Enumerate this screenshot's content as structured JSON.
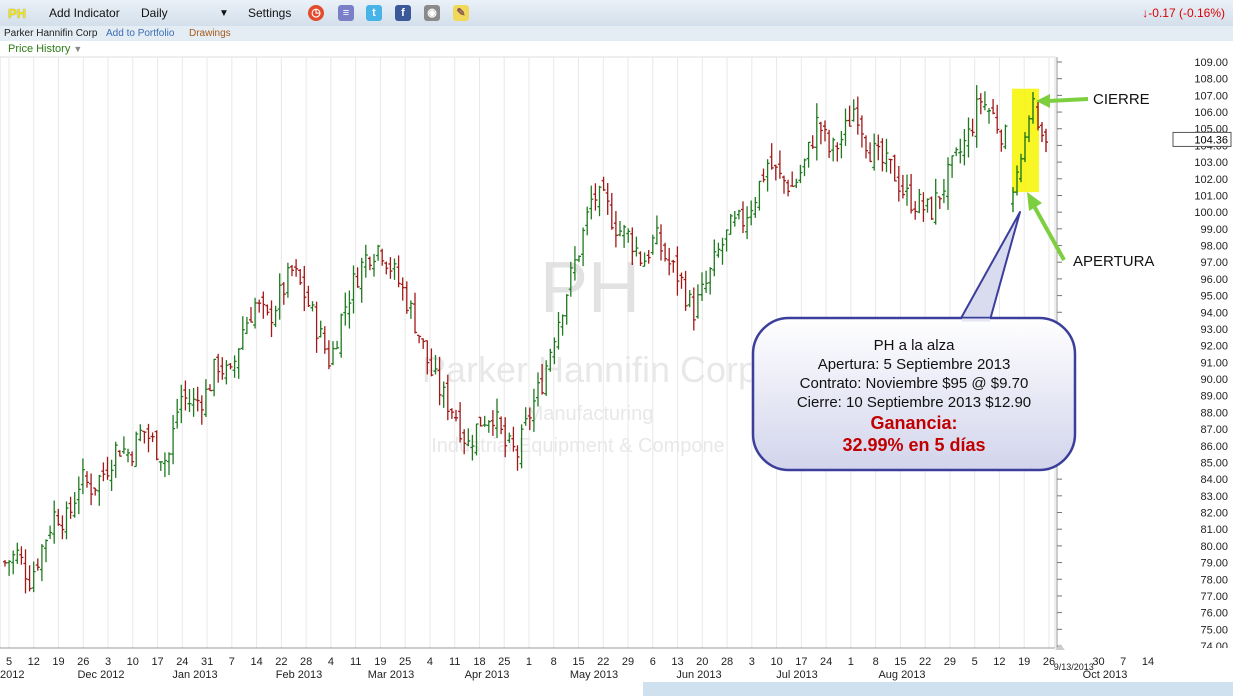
{
  "toolbar": {
    "ticker": "PH",
    "add_indicator": "Add Indicator",
    "period": "Daily",
    "settings": "Settings",
    "change": "-0.17 (-0.16%)",
    "icons": [
      "alarm-clock-icon",
      "database-icon",
      "twitter-icon",
      "facebook-icon",
      "camera-icon",
      "notes-icon"
    ]
  },
  "subbar": {
    "company": "Parker Hannifin Corp",
    "add_portfolio": "Add to Portfolio",
    "drawings": "Drawings"
  },
  "price_history_label": "Price History",
  "watermark": {
    "symbol": "PH",
    "company": "Parker Hannifin Corp",
    "sector": "Manufacturing",
    "industry": "Industrial Equipment & Compone"
  },
  "callout": {
    "line1": "PH a la alza",
    "line2": "Apertura: 5 Septiembre 2013",
    "line3": "Contrato:  Noviembre $95 @ $9.70",
    "line4": "Cierre: 10 Septiembre 2013 $12.90",
    "gain_label": "Ganancia:",
    "gain_value": "32.99% en 5 días"
  },
  "annotations": {
    "cierre": "CIERRE",
    "apertura": "APERTURA"
  },
  "colors": {
    "up": "#1f7a1f",
    "down": "#a01818",
    "highlight": "#f8f400",
    "arrow": "#7dcf3f",
    "callout_border": "#3b3f9b"
  },
  "chart_data": {
    "type": "ohlc",
    "y_axis_labels": [
      "109.00",
      "108.00",
      "107.00",
      "106.00",
      "105.00",
      "104.00",
      "103.00",
      "102.00",
      "101.00",
      "100.00",
      "99.00",
      "98.00",
      "97.00",
      "96.00",
      "95.00",
      "94.00",
      "93.00",
      "92.00",
      "91.00",
      "90.00",
      "89.00",
      "88.00",
      "87.00",
      "86.00",
      "85.00",
      "84.00",
      "83.00",
      "82.00",
      "81.00",
      "80.00",
      "79.00",
      "78.00",
      "77.00",
      "76.00",
      "75.00",
      "74.00"
    ],
    "ylim": [
      74,
      109
    ],
    "last_price": "104.36",
    "x_day_labels": [
      "5",
      "12",
      "19",
      "26",
      "3",
      "10",
      "17",
      "24",
      "31",
      "7",
      "14",
      "22",
      "28",
      "4",
      "11",
      "19",
      "25",
      "4",
      "11",
      "18",
      "25",
      "1",
      "8",
      "15",
      "22",
      "29",
      "6",
      "13",
      "20",
      "28",
      "3",
      "10",
      "17",
      "24",
      "1",
      "8",
      "15",
      "22",
      "29",
      "5",
      "12",
      "19",
      "26",
      "9/13/2013",
      "30",
      "7",
      "14"
    ],
    "x_month_labels": [
      "2012",
      "Dec 2012",
      "Jan 2013",
      "Feb 2013",
      "Mar 2013",
      "Apr 2013",
      "May 2013",
      "Jun 2013",
      "Jul 2013",
      "Aug 2013",
      "Oct 2013"
    ],
    "close_path": [
      79,
      79.5,
      78,
      80,
      82,
      81.5,
      84,
      83.5,
      84.5,
      86,
      85.5,
      87,
      86,
      85,
      89,
      88.5,
      89,
      91,
      90,
      93,
      94.5,
      93.5,
      95,
      96.5,
      95,
      93,
      91,
      94,
      96,
      97.5,
      98,
      96.5,
      95,
      93,
      90.5,
      89,
      88,
      86,
      87.5,
      88,
      86,
      85.5,
      88,
      90,
      93,
      95.5,
      98,
      101,
      100.5,
      99,
      98.5,
      97,
      98.5,
      97,
      96,
      94,
      95.5,
      97.5,
      99,
      99.5,
      101,
      103,
      102,
      101.5,
      103,
      105.5,
      103.5,
      104.5,
      106.5,
      104,
      103,
      102.5,
      101,
      100.5,
      100,
      101.5,
      103,
      104.5,
      106.8,
      105.8,
      104.4
    ],
    "overlay_bars": [
      {
        "x": 1013,
        "o": 100.5,
        "h": 101.5,
        "l": 100,
        "c": 101.2
      },
      {
        "x": 1017,
        "o": 101.2,
        "h": 102.8,
        "l": 101,
        "c": 102.4
      },
      {
        "x": 1021,
        "o": 102,
        "h": 103.5,
        "l": 101.8,
        "c": 103.2
      },
      {
        "x": 1025,
        "o": 103.2,
        "h": 104.8,
        "l": 103,
        "c": 104.5
      },
      {
        "x": 1029,
        "o": 104.5,
        "h": 105.8,
        "l": 104.2,
        "c": 105.6
      },
      {
        "x": 1033,
        "o": 105.6,
        "h": 107.2,
        "l": 105.3,
        "c": 106.8
      },
      {
        "x": 1038,
        "o": 106.3,
        "h": 106.6,
        "l": 104.9,
        "c": 105.1
      },
      {
        "x": 1042,
        "o": 105.2,
        "h": 105.4,
        "l": 104.2,
        "c": 104.6
      },
      {
        "x": 1046,
        "o": 104.8,
        "h": 105.0,
        "l": 103.6,
        "c": 104.2
      }
    ]
  }
}
